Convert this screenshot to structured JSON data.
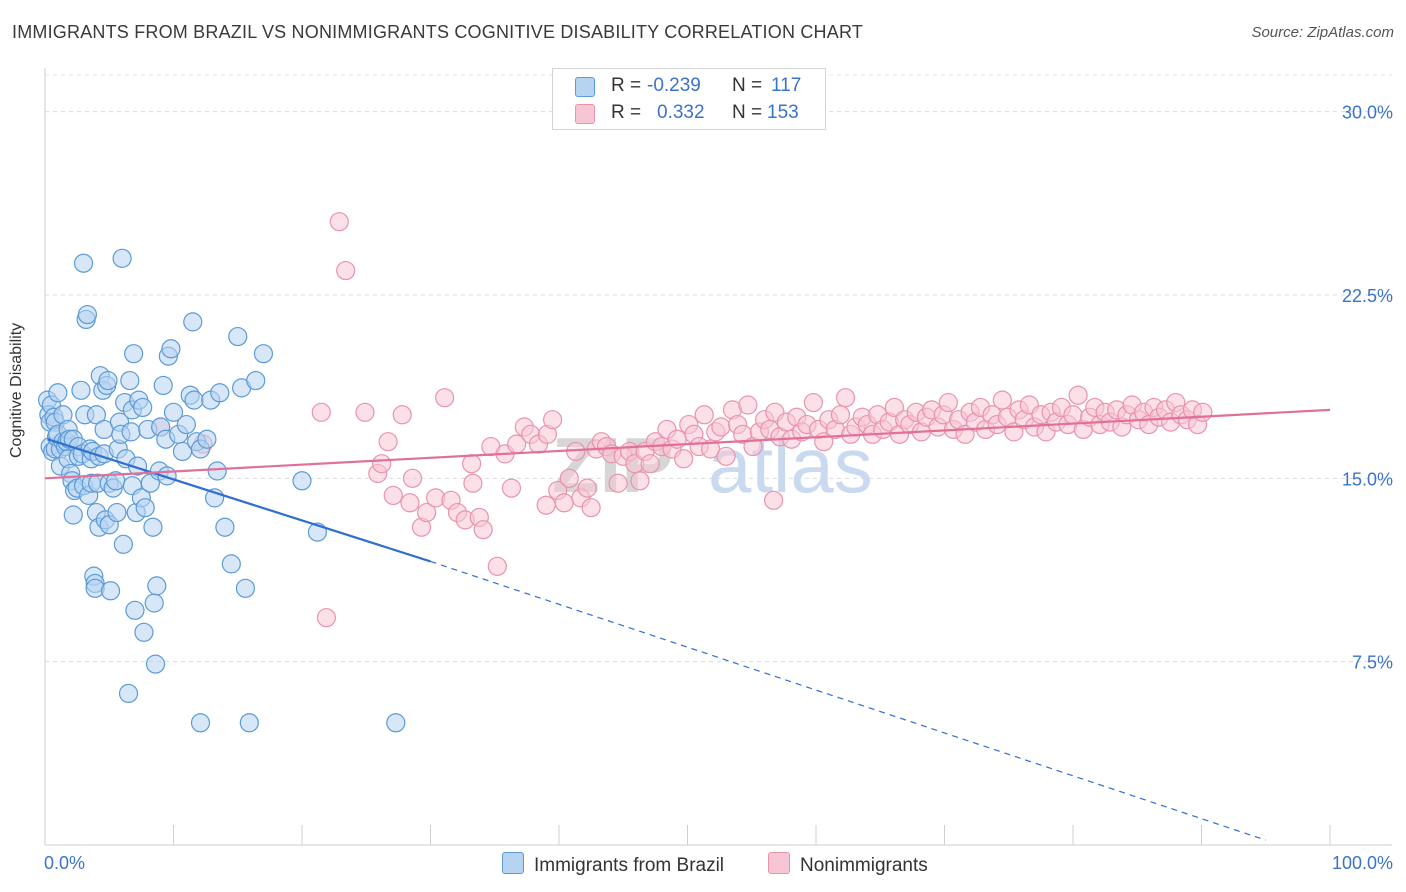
{
  "title": "IMMIGRANTS FROM BRAZIL VS NONIMMIGRANTS COGNITIVE DISABILITY CORRELATION CHART",
  "source": "Source: ZipAtlas.com",
  "colors": {
    "blue": "#5b9bd5",
    "blue_fill": "#b7d3f2",
    "blue_line": "#2f6fd0",
    "pink": "#e993ae",
    "pink_fill": "#f7c6d5",
    "pink_line": "#e0709a",
    "axis_text": "#3a73c9"
  },
  "legend_stats": [
    {
      "r_label": "R =",
      "r_value": "-0.239",
      "n_label": "N =",
      "n_value": "117"
    },
    {
      "r_label": "R =",
      "r_value": "0.332",
      "n_label": "N =",
      "n_value": "153"
    }
  ],
  "watermark": {
    "zip": "ZIP",
    "atlas": "atlas"
  },
  "chart_data": {
    "type": "scatter",
    "title": "IMMIGRANTS FROM BRAZIL VS NONIMMIGRANTS COGNITIVE DISABILITY CORRELATION CHART",
    "xlabel": "",
    "ylabel": "Cognitive Disability",
    "xlim": [
      0,
      100
    ],
    "ylim": [
      0,
      31.5
    ],
    "x_tick_labels": [
      "0.0%",
      "100.0%"
    ],
    "y_ticks": [
      7.5,
      15.0,
      22.5,
      30.0
    ],
    "y_tick_labels": [
      "7.5%",
      "15.0%",
      "22.5%",
      "30.0%"
    ],
    "grid": true,
    "legend_position": "bottom",
    "series": [
      {
        "name": "Immigrants from Brazil",
        "r": -0.239,
        "n": 117,
        "trend": {
          "x0": 0.2,
          "y0": 16.6,
          "x1": 30,
          "y1": 11.6,
          "dash_x1": 95,
          "dash_y1": 0.2
        },
        "points": [
          [
            0.2,
            18.2
          ],
          [
            0.3,
            17.6
          ],
          [
            0.4,
            16.3
          ],
          [
            0.4,
            17.3
          ],
          [
            0.5,
            18.0
          ],
          [
            0.6,
            16.1
          ],
          [
            0.7,
            17.5
          ],
          [
            0.8,
            17.3
          ],
          [
            0.8,
            16.2
          ],
          [
            0.9,
            16.7
          ],
          [
            1.0,
            16.8
          ],
          [
            1.0,
            18.5
          ],
          [
            1.2,
            16.2
          ],
          [
            1.2,
            15.5
          ],
          [
            1.4,
            17.6
          ],
          [
            1.4,
            16.5
          ],
          [
            1.6,
            16.3
          ],
          [
            1.7,
            16.5
          ],
          [
            1.8,
            17.0
          ],
          [
            1.8,
            15.8
          ],
          [
            1.9,
            16.6
          ],
          [
            2.0,
            15.2
          ],
          [
            2.1,
            14.9
          ],
          [
            2.2,
            16.6
          ],
          [
            2.2,
            13.5
          ],
          [
            2.3,
            14.5
          ],
          [
            2.5,
            14.6
          ],
          [
            2.6,
            16.3
          ],
          [
            2.6,
            15.9
          ],
          [
            2.8,
            18.6
          ],
          [
            2.9,
            16.0
          ],
          [
            3.0,
            23.8
          ],
          [
            3.0,
            14.7
          ],
          [
            3.1,
            17.6
          ],
          [
            3.2,
            21.5
          ],
          [
            3.3,
            21.7
          ],
          [
            3.4,
            14.3
          ],
          [
            3.5,
            16.2
          ],
          [
            3.6,
            15.8
          ],
          [
            3.6,
            14.8
          ],
          [
            3.7,
            16.1
          ],
          [
            3.8,
            11.0
          ],
          [
            3.9,
            10.7
          ],
          [
            3.9,
            10.5
          ],
          [
            4.0,
            17.6
          ],
          [
            4.0,
            13.6
          ],
          [
            4.1,
            14.8
          ],
          [
            4.2,
            15.9
          ],
          [
            4.2,
            13.0
          ],
          [
            4.3,
            19.2
          ],
          [
            4.5,
            18.6
          ],
          [
            4.6,
            17.0
          ],
          [
            4.6,
            16.0
          ],
          [
            4.7,
            13.3
          ],
          [
            4.8,
            18.8
          ],
          [
            4.9,
            19.0
          ],
          [
            5.0,
            14.8
          ],
          [
            5.0,
            13.1
          ],
          [
            5.1,
            10.4
          ],
          [
            5.3,
            14.6
          ],
          [
            5.5,
            14.9
          ],
          [
            5.6,
            13.6
          ],
          [
            5.7,
            16.2
          ],
          [
            5.8,
            17.3
          ],
          [
            5.9,
            16.8
          ],
          [
            6.0,
            24.0
          ],
          [
            6.1,
            12.3
          ],
          [
            6.2,
            18.1
          ],
          [
            6.3,
            15.8
          ],
          [
            6.5,
            6.2
          ],
          [
            6.6,
            19.0
          ],
          [
            6.7,
            16.9
          ],
          [
            6.8,
            14.7
          ],
          [
            6.8,
            17.8
          ],
          [
            6.9,
            20.1
          ],
          [
            7.0,
            9.6
          ],
          [
            7.1,
            13.6
          ],
          [
            7.2,
            15.5
          ],
          [
            7.3,
            18.2
          ],
          [
            7.5,
            14.2
          ],
          [
            7.6,
            17.9
          ],
          [
            7.7,
            8.7
          ],
          [
            7.8,
            13.8
          ],
          [
            8.0,
            17.0
          ],
          [
            8.2,
            14.8
          ],
          [
            8.4,
            13.0
          ],
          [
            8.5,
            9.9
          ],
          [
            8.6,
            7.4
          ],
          [
            8.7,
            10.6
          ],
          [
            8.9,
            15.3
          ],
          [
            9.0,
            17.1
          ],
          [
            9.2,
            18.8
          ],
          [
            9.4,
            16.6
          ],
          [
            9.5,
            15.1
          ],
          [
            9.6,
            20.0
          ],
          [
            9.8,
            20.3
          ],
          [
            10.0,
            17.7
          ],
          [
            10.4,
            16.8
          ],
          [
            10.7,
            16.1
          ],
          [
            11.0,
            17.2
          ],
          [
            11.3,
            18.4
          ],
          [
            11.5,
            21.4
          ],
          [
            11.6,
            18.2
          ],
          [
            11.8,
            16.5
          ],
          [
            12.1,
            16.2
          ],
          [
            12.6,
            16.6
          ],
          [
            12.9,
            18.2
          ],
          [
            13.2,
            14.2
          ],
          [
            13.4,
            15.3
          ],
          [
            13.6,
            18.5
          ],
          [
            14.0,
            13.0
          ],
          [
            14.5,
            11.5
          ],
          [
            15.0,
            20.8
          ],
          [
            15.3,
            18.7
          ],
          [
            15.6,
            10.5
          ],
          [
            16.4,
            19.0
          ],
          [
            15.9,
            5.0
          ],
          [
            12.1,
            5.0
          ],
          [
            17.0,
            20.1
          ],
          [
            27.3,
            5.0
          ],
          [
            20.0,
            14.9
          ],
          [
            21.2,
            12.8
          ]
        ]
      },
      {
        "name": "Nonimmigrants",
        "r": 0.332,
        "n": 153,
        "trend": {
          "x0": 0,
          "y0": 15.0,
          "x1": 100,
          "y1": 17.8
        },
        "points": [
          [
            9.0,
            17.1
          ],
          [
            12.3,
            16.4
          ],
          [
            21.9,
            9.3
          ],
          [
            21.5,
            17.7
          ],
          [
            22.9,
            25.5
          ],
          [
            23.4,
            23.5
          ],
          [
            24.9,
            17.7
          ],
          [
            25.9,
            15.2
          ],
          [
            26.2,
            15.6
          ],
          [
            26.7,
            16.5
          ],
          [
            27.1,
            14.3
          ],
          [
            27.8,
            17.6
          ],
          [
            28.4,
            14.0
          ],
          [
            29.3,
            13.0
          ],
          [
            29.7,
            13.6
          ],
          [
            30.4,
            14.2
          ],
          [
            31.1,
            18.3
          ],
          [
            31.6,
            14.1
          ],
          [
            32.1,
            13.6
          ],
          [
            32.7,
            13.3
          ],
          [
            33.3,
            14.8
          ],
          [
            33.8,
            13.4
          ],
          [
            34.1,
            12.9
          ],
          [
            34.7,
            16.3
          ],
          [
            35.2,
            11.4
          ],
          [
            35.8,
            16.0
          ],
          [
            36.3,
            14.6
          ],
          [
            36.7,
            16.4
          ],
          [
            37.3,
            17.1
          ],
          [
            37.8,
            16.8
          ],
          [
            38.4,
            16.4
          ],
          [
            39.1,
            16.8
          ],
          [
            39.5,
            17.4
          ],
          [
            39.9,
            14.5
          ],
          [
            40.4,
            14.0
          ],
          [
            40.8,
            15.0
          ],
          [
            41.3,
            16.1
          ],
          [
            41.7,
            14.2
          ],
          [
            42.2,
            14.6
          ],
          [
            42.5,
            13.8
          ],
          [
            42.9,
            16.2
          ],
          [
            43.3,
            16.5
          ],
          [
            43.7,
            16.3
          ],
          [
            44.1,
            16.0
          ],
          [
            44.6,
            14.8
          ],
          [
            45.0,
            15.9
          ],
          [
            45.5,
            16.1
          ],
          [
            45.9,
            15.6
          ],
          [
            46.3,
            14.9
          ],
          [
            46.7,
            16.1
          ],
          [
            47.1,
            15.6
          ],
          [
            47.5,
            16.5
          ],
          [
            48.0,
            16.3
          ],
          [
            48.4,
            17.0
          ],
          [
            48.8,
            16.2
          ],
          [
            49.2,
            16.6
          ],
          [
            49.7,
            15.8
          ],
          [
            50.1,
            17.2
          ],
          [
            50.5,
            16.8
          ],
          [
            50.9,
            16.3
          ],
          [
            51.3,
            17.6
          ],
          [
            51.8,
            16.2
          ],
          [
            52.2,
            16.9
          ],
          [
            52.6,
            17.1
          ],
          [
            53.0,
            15.9
          ],
          [
            53.5,
            17.8
          ],
          [
            53.9,
            17.2
          ],
          [
            54.3,
            16.8
          ],
          [
            54.7,
            18.0
          ],
          [
            55.1,
            16.3
          ],
          [
            55.6,
            16.9
          ],
          [
            56.0,
            17.4
          ],
          [
            56.4,
            17.0
          ],
          [
            56.8,
            17.7
          ],
          [
            57.2,
            16.7
          ],
          [
            57.7,
            17.3
          ],
          [
            58.1,
            16.6
          ],
          [
            58.5,
            17.5
          ],
          [
            58.9,
            16.9
          ],
          [
            59.3,
            17.2
          ],
          [
            59.8,
            18.1
          ],
          [
            60.2,
            17.0
          ],
          [
            60.6,
            16.5
          ],
          [
            61.0,
            17.4
          ],
          [
            61.5,
            17.0
          ],
          [
            61.9,
            17.6
          ],
          [
            62.3,
            18.3
          ],
          [
            62.7,
            16.8
          ],
          [
            63.1,
            17.1
          ],
          [
            63.6,
            17.5
          ],
          [
            64.0,
            17.2
          ],
          [
            64.4,
            16.8
          ],
          [
            64.8,
            17.6
          ],
          [
            65.2,
            17.0
          ],
          [
            65.7,
            17.3
          ],
          [
            66.1,
            17.9
          ],
          [
            66.5,
            16.8
          ],
          [
            66.9,
            17.4
          ],
          [
            67.3,
            17.2
          ],
          [
            67.8,
            17.7
          ],
          [
            68.2,
            16.9
          ],
          [
            68.6,
            17.5
          ],
          [
            69.0,
            17.8
          ],
          [
            69.5,
            17.1
          ],
          [
            69.9,
            17.6
          ],
          [
            70.3,
            18.1
          ],
          [
            70.7,
            17.0
          ],
          [
            71.1,
            17.4
          ],
          [
            71.6,
            16.8
          ],
          [
            72.0,
            17.7
          ],
          [
            72.4,
            17.3
          ],
          [
            72.8,
            17.9
          ],
          [
            73.2,
            17.0
          ],
          [
            73.7,
            17.6
          ],
          [
            74.1,
            17.2
          ],
          [
            74.5,
            18.2
          ],
          [
            74.9,
            17.5
          ],
          [
            75.4,
            16.9
          ],
          [
            75.8,
            17.8
          ],
          [
            76.2,
            17.4
          ],
          [
            76.6,
            18.0
          ],
          [
            77.0,
            17.1
          ],
          [
            77.5,
            17.6
          ],
          [
            77.9,
            16.9
          ],
          [
            78.3,
            17.7
          ],
          [
            78.7,
            17.3
          ],
          [
            79.1,
            17.9
          ],
          [
            79.6,
            17.2
          ],
          [
            80.0,
            17.6
          ],
          [
            80.4,
            18.4
          ],
          [
            80.8,
            17.0
          ],
          [
            81.3,
            17.5
          ],
          [
            81.7,
            17.9
          ],
          [
            82.1,
            17.2
          ],
          [
            82.5,
            17.7
          ],
          [
            82.9,
            17.3
          ],
          [
            83.4,
            17.8
          ],
          [
            83.8,
            17.1
          ],
          [
            84.2,
            17.6
          ],
          [
            84.6,
            18.0
          ],
          [
            85.1,
            17.4
          ],
          [
            85.5,
            17.7
          ],
          [
            85.9,
            17.2
          ],
          [
            86.3,
            17.9
          ],
          [
            86.7,
            17.5
          ],
          [
            87.2,
            17.8
          ],
          [
            87.6,
            17.3
          ],
          [
            88.0,
            18.1
          ],
          [
            88.4,
            17.6
          ],
          [
            88.9,
            17.4
          ],
          [
            89.3,
            17.8
          ],
          [
            89.7,
            17.2
          ],
          [
            90.1,
            17.7
          ],
          [
            39.0,
            13.9
          ],
          [
            56.7,
            14.1
          ],
          [
            33.2,
            15.6
          ],
          [
            28.6,
            15.0
          ]
        ]
      }
    ]
  },
  "legend_bottom": [
    "Immigrants from Brazil",
    "Nonimmigrants"
  ],
  "axis": {
    "x_left_label": "0.0%",
    "x_right_label": "100.0%",
    "y_labels": [
      "30.0%",
      "22.5%",
      "15.0%",
      "7.5%"
    ]
  }
}
